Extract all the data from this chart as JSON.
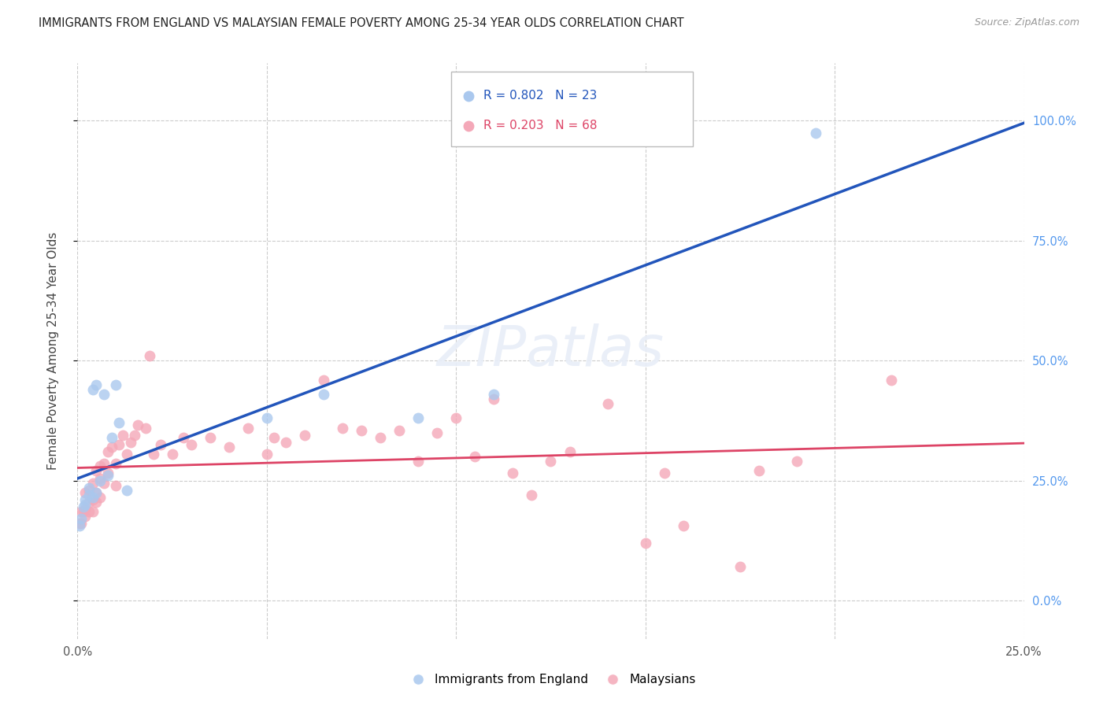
{
  "title": "IMMIGRANTS FROM ENGLAND VS MALAYSIAN FEMALE POVERTY AMONG 25-34 YEAR OLDS CORRELATION CHART",
  "source": "Source: ZipAtlas.com",
  "ylabel": "Female Poverty Among 25-34 Year Olds",
  "xlim": [
    0.0,
    0.25
  ],
  "ylim": [
    -0.08,
    1.12
  ],
  "right_yticks": [
    0.0,
    0.25,
    0.5,
    0.75,
    1.0
  ],
  "right_yticklabels": [
    "0.0%",
    "25.0%",
    "50.0%",
    "75.0%",
    "100.0%"
  ],
  "xticks": [
    0.0,
    0.05,
    0.1,
    0.15,
    0.2,
    0.25
  ],
  "xticklabels": [
    "0.0%",
    "",
    "",
    "",
    "",
    "25.0%"
  ],
  "grid_color": "#cccccc",
  "bg_color": "#ffffff",
  "blue_color": "#aac8ee",
  "pink_color": "#f4a8b8",
  "blue_line_color": "#2255bb",
  "pink_line_color": "#dd4466",
  "legend_r1": "R = 0.802",
  "legend_n1": "N = 23",
  "legend_r2": "R = 0.203",
  "legend_n2": "N = 68",
  "legend_label1": "Immigrants from England",
  "legend_label2": "Malaysians",
  "blue_x": [
    0.0005,
    0.001,
    0.0015,
    0.002,
    0.002,
    0.003,
    0.003,
    0.004,
    0.004,
    0.005,
    0.005,
    0.006,
    0.007,
    0.008,
    0.009,
    0.01,
    0.011,
    0.013,
    0.05,
    0.065,
    0.09,
    0.11,
    0.195
  ],
  "blue_y": [
    0.155,
    0.17,
    0.195,
    0.2,
    0.21,
    0.22,
    0.235,
    0.215,
    0.44,
    0.225,
    0.45,
    0.25,
    0.43,
    0.26,
    0.34,
    0.45,
    0.37,
    0.23,
    0.38,
    0.43,
    0.38,
    0.43,
    0.975
  ],
  "pink_x": [
    0.0005,
    0.001,
    0.001,
    0.0015,
    0.002,
    0.002,
    0.002,
    0.003,
    0.003,
    0.003,
    0.004,
    0.004,
    0.004,
    0.005,
    0.005,
    0.005,
    0.006,
    0.006,
    0.006,
    0.007,
    0.007,
    0.008,
    0.008,
    0.009,
    0.01,
    0.01,
    0.011,
    0.012,
    0.013,
    0.014,
    0.015,
    0.016,
    0.018,
    0.019,
    0.02,
    0.022,
    0.025,
    0.028,
    0.03,
    0.035,
    0.04,
    0.045,
    0.05,
    0.052,
    0.055,
    0.06,
    0.065,
    0.07,
    0.075,
    0.08,
    0.085,
    0.09,
    0.095,
    0.1,
    0.105,
    0.11,
    0.115,
    0.12,
    0.125,
    0.13,
    0.14,
    0.15,
    0.155,
    0.16,
    0.175,
    0.18,
    0.19,
    0.215
  ],
  "pink_y": [
    0.16,
    0.16,
    0.185,
    0.185,
    0.175,
    0.19,
    0.225,
    0.185,
    0.205,
    0.23,
    0.185,
    0.21,
    0.245,
    0.205,
    0.225,
    0.27,
    0.215,
    0.255,
    0.28,
    0.245,
    0.285,
    0.265,
    0.31,
    0.32,
    0.24,
    0.285,
    0.325,
    0.345,
    0.305,
    0.33,
    0.345,
    0.365,
    0.36,
    0.51,
    0.305,
    0.325,
    0.305,
    0.34,
    0.325,
    0.34,
    0.32,
    0.36,
    0.305,
    0.34,
    0.33,
    0.345,
    0.46,
    0.36,
    0.355,
    0.34,
    0.355,
    0.29,
    0.35,
    0.38,
    0.3,
    0.42,
    0.265,
    0.22,
    0.29,
    0.31,
    0.41,
    0.12,
    0.265,
    0.155,
    0.07,
    0.27,
    0.29,
    0.46
  ]
}
